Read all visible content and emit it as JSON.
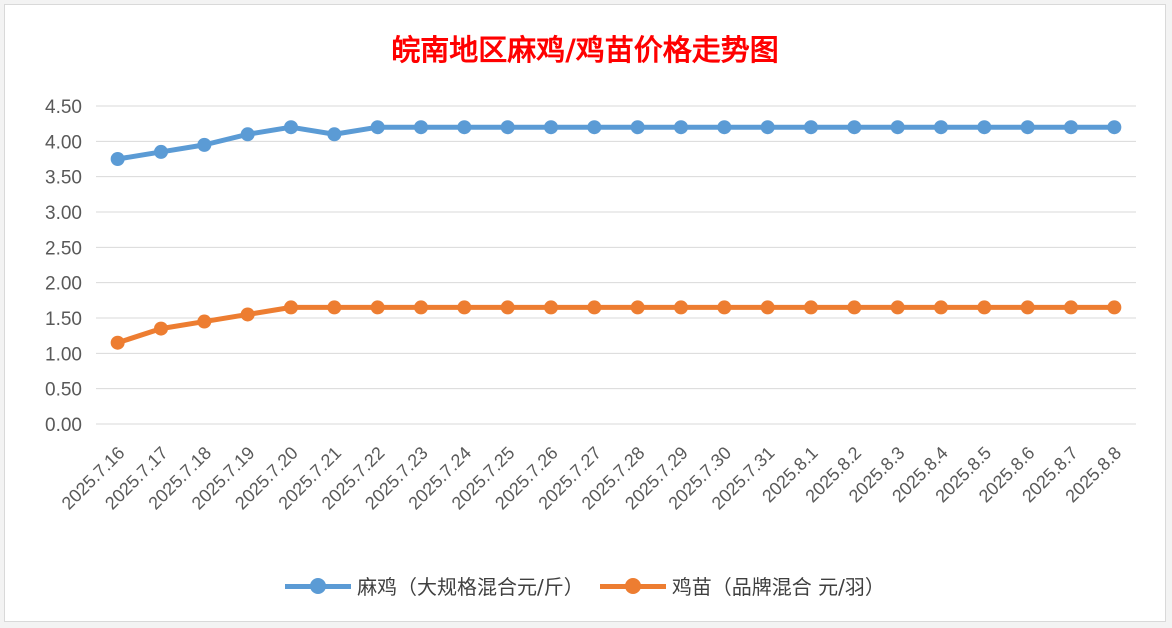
{
  "chart_data": {
    "type": "line",
    "title": "皖南地区麻鸡/鸡苗价格走势图",
    "categories": [
      "2025.7.16",
      "2025.7.17",
      "2025.7.18",
      "2025.7.19",
      "2025.7.20",
      "2025.7.21",
      "2025.7.22",
      "2025.7.23",
      "2025.7.24",
      "2025.7.25",
      "2025.7.26",
      "2025.7.27",
      "2025.7.28",
      "2025.7.29",
      "2025.7.30",
      "2025.7.31",
      "2025.8.1",
      "2025.8.2",
      "2025.8.3",
      "2025.8.4",
      "2025.8.5",
      "2025.8.6",
      "2025.8.7",
      "2025.8.8"
    ],
    "series": [
      {
        "name": "麻鸡（大规格混合元/斤）",
        "color": "#5b9bd5",
        "values": [
          3.75,
          3.85,
          3.95,
          4.1,
          4.2,
          4.1,
          4.2,
          4.2,
          4.2,
          4.2,
          4.2,
          4.2,
          4.2,
          4.2,
          4.2,
          4.2,
          4.2,
          4.2,
          4.2,
          4.2,
          4.2,
          4.2,
          4.2,
          4.2
        ]
      },
      {
        "name": "鸡苗（品牌混合 元/羽）",
        "color": "#ed7d31",
        "values": [
          1.15,
          1.35,
          1.45,
          1.55,
          1.65,
          1.65,
          1.65,
          1.65,
          1.65,
          1.65,
          1.65,
          1.65,
          1.65,
          1.65,
          1.65,
          1.65,
          1.65,
          1.65,
          1.65,
          1.65,
          1.65,
          1.65,
          1.65,
          1.65
        ]
      }
    ],
    "yticks": [
      "0.00",
      "0.50",
      "1.00",
      "1.50",
      "2.00",
      "2.50",
      "3.00",
      "3.50",
      "4.00",
      "4.50"
    ],
    "ylim": [
      0,
      4.5
    ],
    "grid": true,
    "legend_position": "bottom"
  }
}
